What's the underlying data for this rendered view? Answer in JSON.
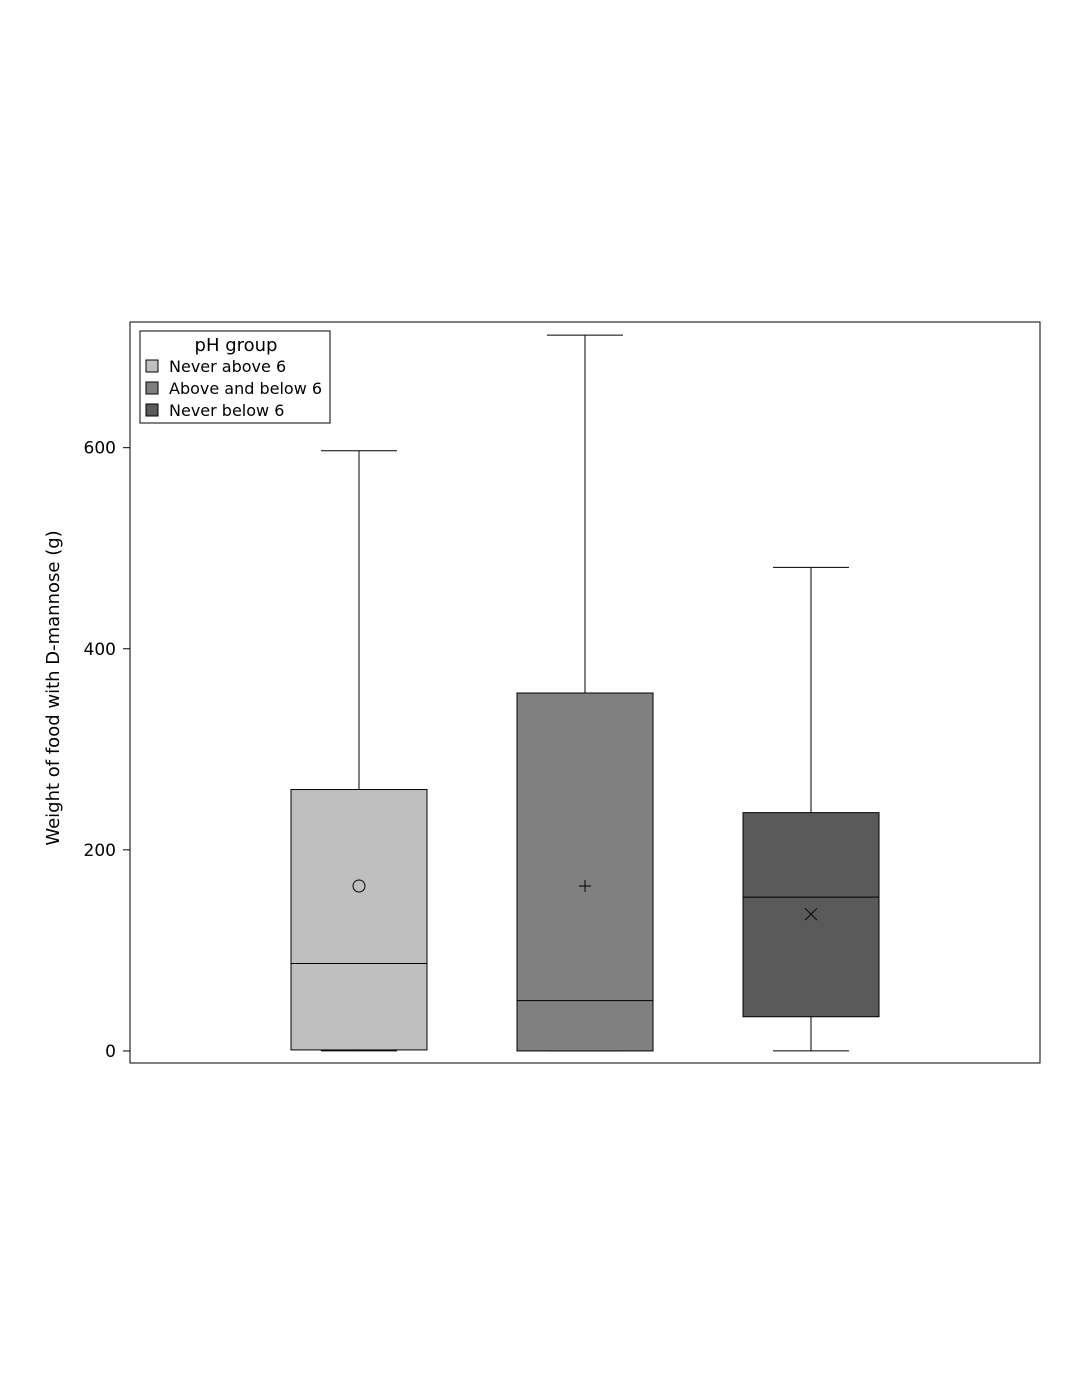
{
  "chart_data": {
    "type": "box",
    "ylabel": "Weight of food with D-mannose (g)",
    "xlabel": "",
    "ylim": [
      -12,
      725
    ],
    "yticks": [
      0,
      200,
      400,
      600
    ],
    "grid": false,
    "legend": {
      "title": "pH group",
      "position": "top-left",
      "entries": [
        "Never above 6",
        "Above and below 6",
        "Never below 6"
      ]
    },
    "series": [
      {
        "name": "Never above 6",
        "color": "#bfbfbf",
        "min": 0,
        "q1": 1,
        "median": 87,
        "q3": 260,
        "max": 597,
        "mean": 164,
        "mean_marker": "circle"
      },
      {
        "name": "Above and below 6",
        "color": "#808080",
        "min": 0,
        "q1": 0,
        "median": 50,
        "q3": 356,
        "max": 712,
        "mean": 164,
        "mean_marker": "plus"
      },
      {
        "name": "Never below 6",
        "color": "#5a5a5a",
        "min": 0,
        "q1": 34,
        "median": 153,
        "q3": 237,
        "max": 481,
        "mean": 136,
        "mean_marker": "x"
      }
    ]
  }
}
